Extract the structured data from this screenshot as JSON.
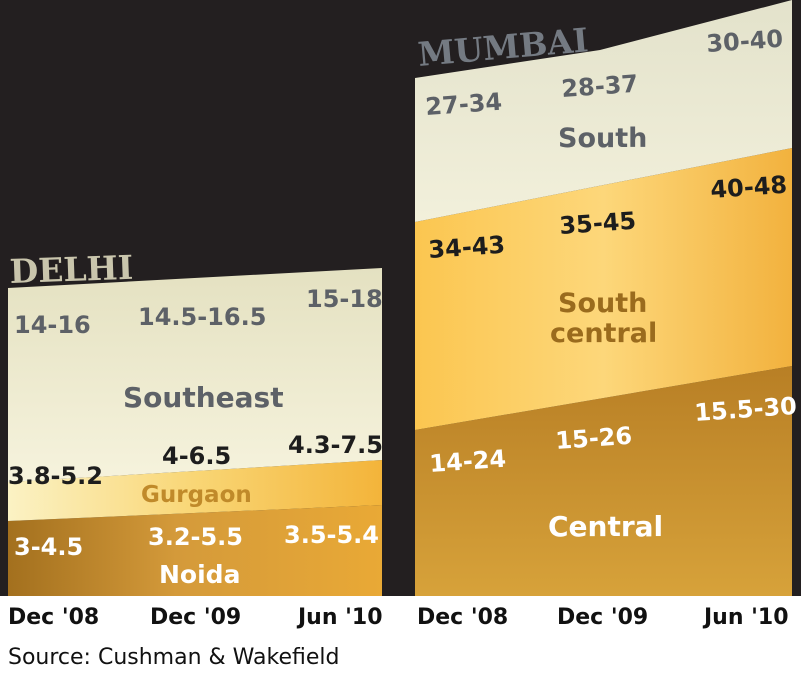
{
  "background_color": "#231f20",
  "strip_color": "#ffffff",
  "source": "Source: Cushman & Wakefield",
  "chart_data": [
    {
      "type": "area",
      "title": "DELHI",
      "categories": [
        "Dec '08",
        "Dec '09",
        "Jun '10"
      ],
      "series": [
        {
          "name": "Noida",
          "values": [
            "3-4.5",
            "3.2-5.5",
            "3.5-5.4"
          ],
          "color": "#d9a43a"
        },
        {
          "name": "Gurgaon",
          "values": [
            "3.8-5.2",
            "4-6.5",
            "4.3-7.5"
          ],
          "color": "#f6c24c"
        },
        {
          "name": "Southeast",
          "values": [
            "14-16",
            "14.5-16.5",
            "15-18"
          ],
          "color": "#eeeacb"
        }
      ]
    },
    {
      "type": "area",
      "title": "MUMBAI",
      "categories": [
        "Dec '08",
        "Dec '09",
        "Jun '10"
      ],
      "series": [
        {
          "name": "Central",
          "values": [
            "14-24",
            "15-26",
            "15.5-30"
          ],
          "color": "#c68a2a"
        },
        {
          "name": "South central",
          "values": [
            "34-43",
            "35-45",
            "40-48"
          ],
          "color": "#f4b93a"
        },
        {
          "name": "South",
          "values": [
            "27-34",
            "28-37",
            "30-40"
          ],
          "color": "#efecd2"
        }
      ]
    }
  ]
}
